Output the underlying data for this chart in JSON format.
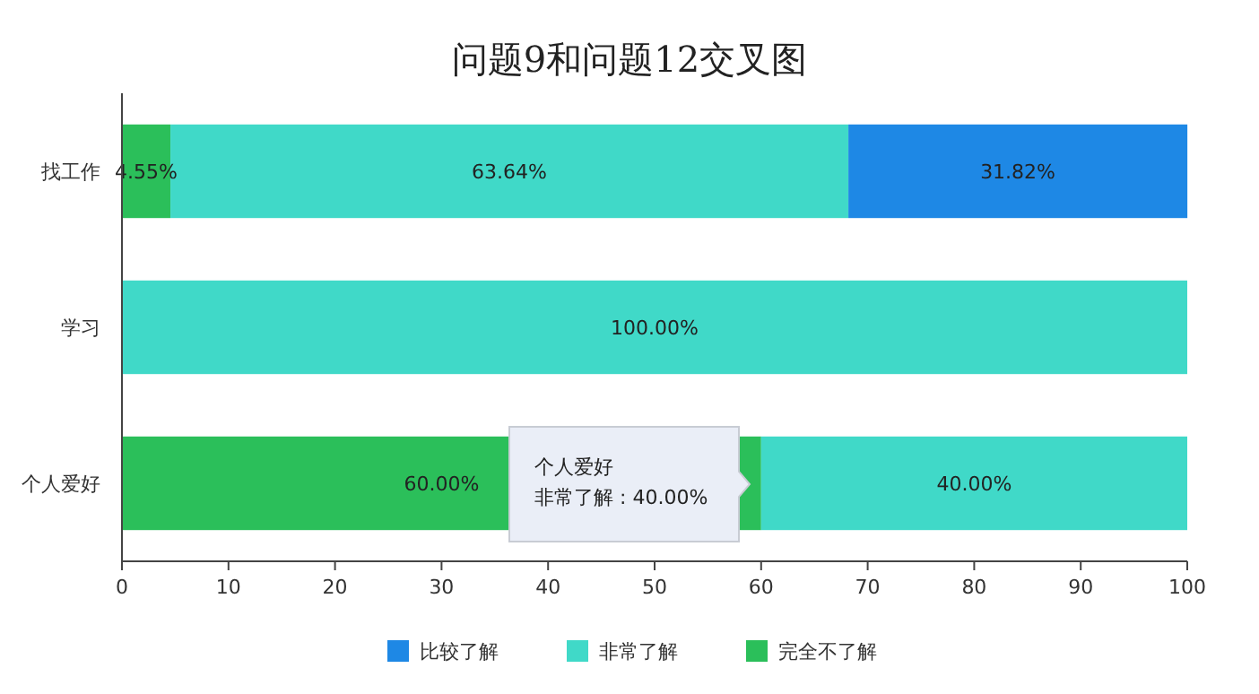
{
  "chart_data": {
    "type": "bar",
    "title": "问题9和问题12交叉图",
    "orientation": "horizontal",
    "stacked": true,
    "categories": [
      "找工作",
      "学习",
      "个人爱好"
    ],
    "series": [
      {
        "name": "完全不了解",
        "color": "#2bbf5a",
        "values": [
          4.55,
          null,
          60
        ],
        "value_labels": [
          "4.55%",
          null,
          "60.00%"
        ]
      },
      {
        "name": "非常了解",
        "color": "#40d9c8",
        "values": [
          63.64,
          100,
          40
        ],
        "value_labels": [
          "63.64%",
          "100.00%",
          "40.00%"
        ]
      },
      {
        "name": "比较了解",
        "color": "#1e88e5",
        "values": [
          31.82,
          null,
          null
        ],
        "value_labels": [
          "31.82%",
          null,
          null
        ]
      }
    ],
    "xlim": [
      0,
      100
    ],
    "xticks": [
      0,
      10,
      20,
      30,
      40,
      50,
      60,
      70,
      80,
      90,
      100
    ],
    "legend": "bottom",
    "grid": false,
    "annotations": [
      "个人爱好",
      "非常了解 : 40.00%"
    ]
  }
}
